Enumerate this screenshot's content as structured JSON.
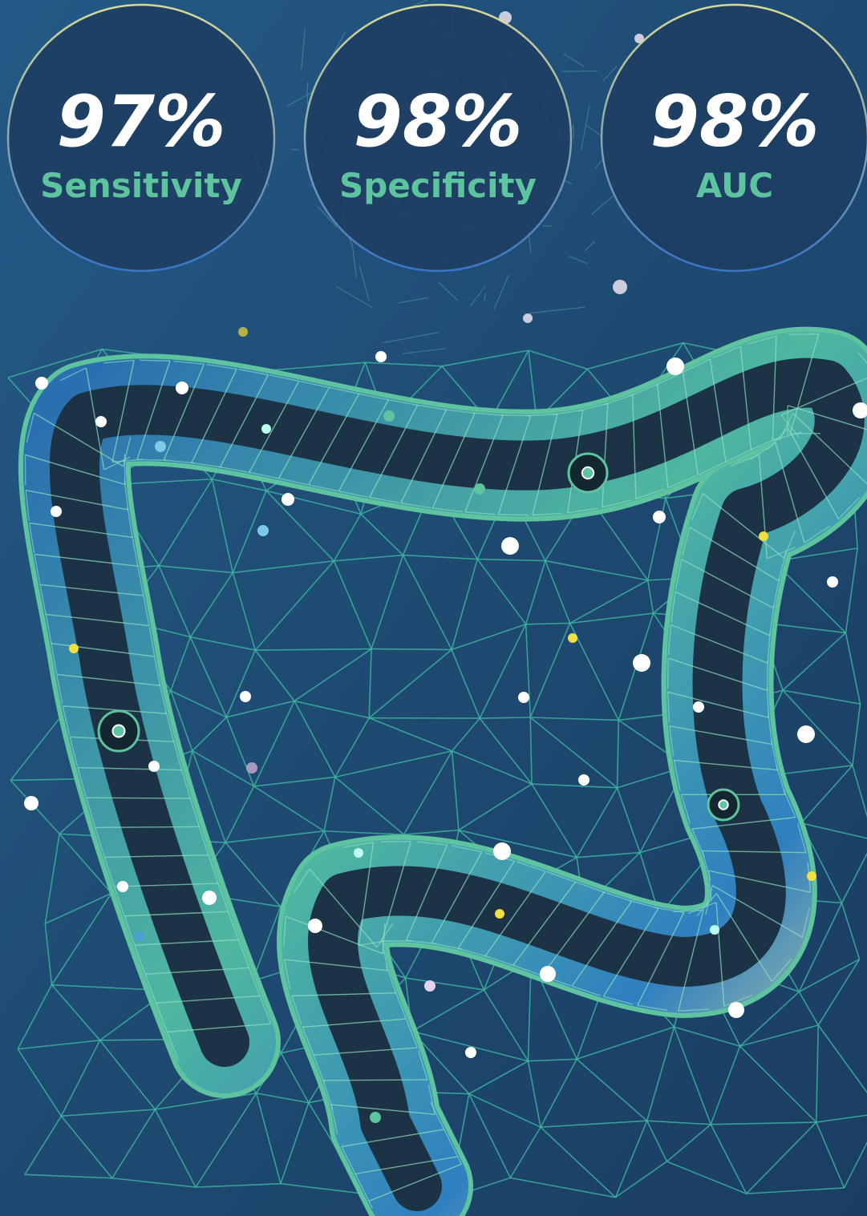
{
  "stats": [
    {
      "value": "97%",
      "label": "Sensitivity"
    },
    {
      "value": "98%",
      "label": "Specificity"
    },
    {
      "value": "98%",
      "label": "AUC"
    }
  ]
}
